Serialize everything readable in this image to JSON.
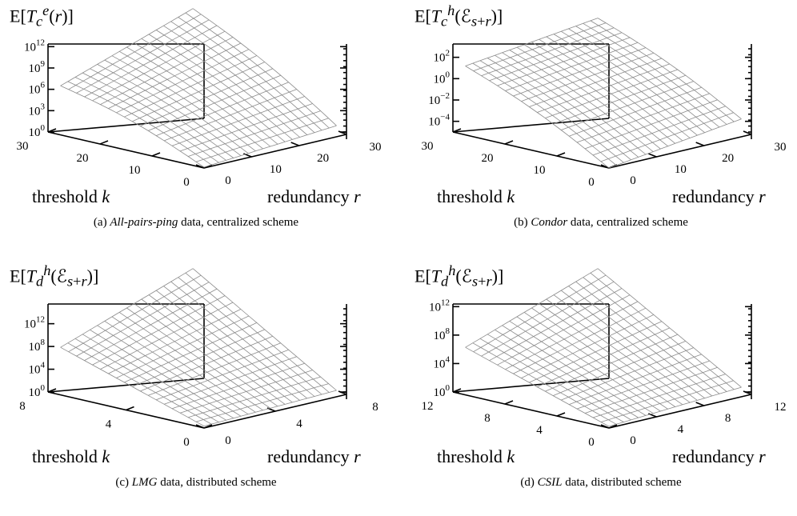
{
  "chart_data": [
    {
      "id": "a",
      "type": "surface3d",
      "title_html": "E[<i>T</i><sub><i>c</i></sub><sup><i>e</i></sup>(<i>r</i>)]",
      "caption_pre": "(a) ",
      "caption_italic": "All-pairs-ping",
      "caption_post": " data, centralized scheme",
      "k_label": "threshold",
      "k_sym": "k",
      "r_label": "redundancy",
      "r_sym": "r",
      "k_ticks": [
        "30",
        "20",
        "10",
        "0"
      ],
      "k_tick_values": [
        30,
        20,
        10,
        0
      ],
      "r_ticks": [
        "0",
        "10",
        "20",
        "30"
      ],
      "r_tick_values": [
        0,
        10,
        20,
        30
      ],
      "z_ticks": [
        {
          "base": "10",
          "exp": "0"
        },
        {
          "base": "10",
          "exp": "3"
        },
        {
          "base": "10",
          "exp": "6"
        },
        {
          "base": "10",
          "exp": "9"
        },
        {
          "base": "10",
          "exp": "12"
        }
      ],
      "z_tick_values": [
        0,
        3,
        6,
        9,
        12
      ],
      "z_scale": "log10",
      "z_range": [
        0,
        12
      ],
      "k_range": [
        0,
        30
      ],
      "r_range": [
        0,
        30
      ],
      "surface": {
        "z_at_k0_r0": 0.1,
        "z_at_k0_rmax": 1.4,
        "z_at_kmax_r0": 6.2,
        "z_at_kmax_rmax": 12.0,
        "shape": "concave"
      },
      "mesh_color": "#8a8a8a"
    },
    {
      "id": "b",
      "type": "surface3d",
      "title_html": "E[<i>T</i><sub><i>c</i></sub><sup><i>h</i></sup>(ℰ<sub><i>s</i>+<i>r</i></sub>)]",
      "caption_pre": "(b) ",
      "caption_italic": "Condor",
      "caption_post": " data, centralized scheme",
      "k_label": "threshold",
      "k_sym": "k",
      "r_label": "redundancy",
      "r_sym": "r",
      "k_ticks": [
        "30",
        "20",
        "10",
        "0"
      ],
      "k_tick_values": [
        30,
        20,
        10,
        0
      ],
      "r_ticks": [
        "0",
        "10",
        "20",
        "30"
      ],
      "r_tick_values": [
        0,
        10,
        20,
        30
      ],
      "z_ticks": [
        {
          "base": "10",
          "exp": "−4"
        },
        {
          "base": "10",
          "exp": "−2"
        },
        {
          "base": "10",
          "exp": "0"
        },
        {
          "base": "10",
          "exp": "2"
        }
      ],
      "z_tick_values": [
        -4,
        -2,
        0,
        2
      ],
      "z_scale": "log10",
      "z_range": [
        -5,
        3
      ],
      "k_range": [
        0,
        30
      ],
      "r_range": [
        0,
        30
      ],
      "surface": {
        "z_at_k0_r0": -5.0,
        "z_at_k0_rmax": -3.5,
        "z_at_kmax_r0": 0.8,
        "z_at_kmax_rmax": 2.2,
        "shape": "concave"
      },
      "mesh_color": "#8a8a8a"
    },
    {
      "id": "c",
      "type": "surface3d",
      "title_html": "E[<i>T</i><sub><i>d</i></sub><sup><i>h</i></sup>(ℰ<sub><i>s</i>+<i>r</i></sub>)]",
      "caption_pre": "(c) ",
      "caption_italic": "LMG",
      "caption_post": " data, distributed scheme",
      "k_label": "threshold",
      "k_sym": "k",
      "r_label": "redundancy",
      "r_sym": "r",
      "k_ticks": [
        "8",
        "4",
        "0"
      ],
      "k_tick_values": [
        8,
        4,
        0
      ],
      "r_ticks": [
        "0",
        "4",
        "8"
      ],
      "r_tick_values": [
        0,
        4,
        8
      ],
      "z_ticks": [
        {
          "base": "10",
          "exp": "0"
        },
        {
          "base": "10",
          "exp": "4"
        },
        {
          "base": "10",
          "exp": "8"
        },
        {
          "base": "10",
          "exp": "12"
        }
      ],
      "z_tick_values": [
        0,
        4,
        8,
        12
      ],
      "z_scale": "log10",
      "z_range": [
        0,
        15
      ],
      "k_range": [
        0,
        8
      ],
      "r_range": [
        0,
        8
      ],
      "surface": {
        "z_at_k0_r0": 0.3,
        "z_at_k0_rmax": 1.0,
        "z_at_kmax_r0": 7.5,
        "z_at_kmax_rmax": 15.0,
        "shape": "planar"
      },
      "mesh_color": "#8a8a8a"
    },
    {
      "id": "d",
      "type": "surface3d",
      "title_html": "E[<i>T</i><sub><i>d</i></sub><sup><i>h</i></sup>(ℰ<sub><i>s</i>+<i>r</i></sub>)]",
      "caption_pre": "(d) ",
      "caption_italic": "CSIL",
      "caption_post": " data, distributed scheme",
      "k_label": "threshold",
      "k_sym": "k",
      "r_label": "redundancy",
      "r_sym": "r",
      "k_ticks": [
        "12",
        "8",
        "4",
        "0"
      ],
      "k_tick_values": [
        12,
        8,
        4,
        0
      ],
      "r_ticks": [
        "0",
        "4",
        "8",
        "12"
      ],
      "r_tick_values": [
        0,
        4,
        8,
        12
      ],
      "z_ticks": [
        {
          "base": "10",
          "exp": "0"
        },
        {
          "base": "10",
          "exp": "4"
        },
        {
          "base": "10",
          "exp": "8"
        },
        {
          "base": "10",
          "exp": "12"
        }
      ],
      "z_tick_values": [
        0,
        4,
        8,
        12
      ],
      "z_scale": "log10",
      "z_range": [
        0,
        12
      ],
      "k_range": [
        0,
        12
      ],
      "r_range": [
        0,
        12
      ],
      "surface": {
        "z_at_k0_r0": 0.2,
        "z_at_k0_rmax": 1.2,
        "z_at_kmax_r0": 6.0,
        "z_at_kmax_rmax": 12.0,
        "shape": "planar"
      },
      "mesh_color": "#8a8a8a"
    }
  ]
}
